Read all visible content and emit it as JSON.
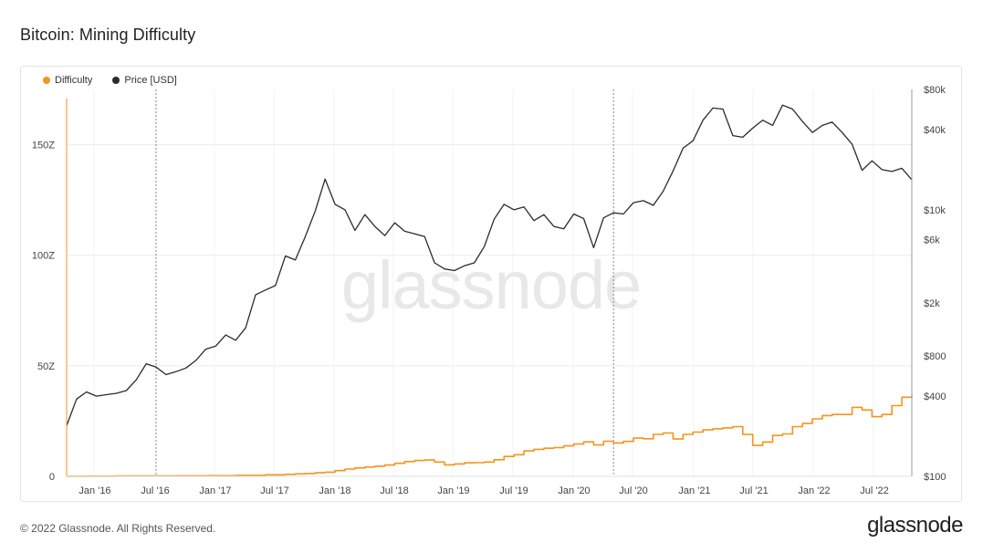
{
  "title": "Bitcoin: Mining Difficulty",
  "footer": "© 2022 Glassnode. All Rights Reserved.",
  "brand": "glassnode",
  "watermark": "glassnode",
  "colors": {
    "difficulty": "#f7931a",
    "price": "#2b2b2b",
    "grid": "#ececec"
  },
  "chart_data": {
    "type": "line",
    "xlabels": [
      "Jan '16",
      "Jul '16",
      "Jan '17",
      "Jul '17",
      "Jan '18",
      "Jul '18",
      "Jan '19",
      "Jul '19",
      "Jan '20",
      "Jul '20",
      "Jan '21",
      "Jul '21",
      "Jan '22",
      "Jul '22"
    ],
    "x_range": [
      "2015-10",
      "2022-11"
    ],
    "left_axis": {
      "ticks": [
        0,
        50,
        100,
        150
      ],
      "tick_labels": [
        "0",
        "50Z",
        "100Z",
        "150Z"
      ],
      "range": [
        0,
        175
      ]
    },
    "right_axis": {
      "scale": "log",
      "ticks": [
        100,
        400,
        800,
        2000,
        6000,
        10000,
        40000,
        80000
      ],
      "tick_labels": [
        "$100",
        "$400",
        "$800",
        "$2k",
        "$6k",
        "$10k",
        "$40k",
        "$80k"
      ],
      "range": [
        100,
        80000
      ]
    },
    "vertical_markers": [
      "2016-07",
      "2020-05"
    ],
    "legend": [
      {
        "name": "Difficulty"
      },
      {
        "name": "Price [USD]"
      }
    ],
    "series": [
      {
        "name": "Difficulty",
        "axis": "left",
        "step": true,
        "points": [
          [
            "2015-10",
            0.06
          ],
          [
            "2015-12",
            0.1
          ],
          [
            "2016-03",
            0.16
          ],
          [
            "2016-06",
            0.2
          ],
          [
            "2016-09",
            0.23
          ],
          [
            "2016-12",
            0.3
          ],
          [
            "2017-03",
            0.45
          ],
          [
            "2017-06",
            0.7
          ],
          [
            "2017-08",
            0.9
          ],
          [
            "2017-09",
            1.1
          ],
          [
            "2017-10",
            1.3
          ],
          [
            "2017-11",
            1.6
          ],
          [
            "2017-12",
            1.9
          ],
          [
            "2018-01",
            2.6
          ],
          [
            "2018-02",
            3.3
          ],
          [
            "2018-03",
            3.8
          ],
          [
            "2018-04",
            4.2
          ],
          [
            "2018-05",
            4.6
          ],
          [
            "2018-06",
            5.1
          ],
          [
            "2018-07",
            5.9
          ],
          [
            "2018-08",
            6.7
          ],
          [
            "2018-09",
            7.2
          ],
          [
            "2018-10",
            7.4
          ],
          [
            "2018-11",
            6.5
          ],
          [
            "2018-12",
            5.2
          ],
          [
            "2019-01",
            5.6
          ],
          [
            "2019-02",
            6.1
          ],
          [
            "2019-03",
            6.2
          ],
          [
            "2019-04",
            6.5
          ],
          [
            "2019-05",
            7.5
          ],
          [
            "2019-06",
            9.0
          ],
          [
            "2019-07",
            9.8
          ],
          [
            "2019-08",
            11.5
          ],
          [
            "2019-09",
            12.2
          ],
          [
            "2019-10",
            12.7
          ],
          [
            "2019-11",
            13.0
          ],
          [
            "2019-12",
            13.8
          ],
          [
            "2020-01",
            14.6
          ],
          [
            "2020-02",
            15.6
          ],
          [
            "2020-03",
            14.2
          ],
          [
            "2020-04",
            15.9
          ],
          [
            "2020-05",
            15.1
          ],
          [
            "2020-06",
            15.8
          ],
          [
            "2020-07",
            17.3
          ],
          [
            "2020-08",
            17.0
          ],
          [
            "2020-09",
            19.0
          ],
          [
            "2020-10",
            19.6
          ],
          [
            "2020-11",
            16.9
          ],
          [
            "2020-12",
            19.0
          ],
          [
            "2021-01",
            20.0
          ],
          [
            "2021-02",
            21.0
          ],
          [
            "2021-03",
            21.5
          ],
          [
            "2021-04",
            21.9
          ],
          [
            "2021-05",
            22.5
          ],
          [
            "2021-06",
            19.0
          ],
          [
            "2021-07",
            14.0
          ],
          [
            "2021-08",
            15.5
          ],
          [
            "2021-09",
            18.5
          ],
          [
            "2021-10",
            19.2
          ],
          [
            "2021-11",
            22.5
          ],
          [
            "2021-12",
            24.0
          ],
          [
            "2022-01",
            26.0
          ],
          [
            "2022-02",
            27.5
          ],
          [
            "2022-03",
            28.0
          ],
          [
            "2022-04",
            28.0
          ],
          [
            "2022-05",
            31.2
          ],
          [
            "2022-06",
            30.0
          ],
          [
            "2022-07",
            27.0
          ],
          [
            "2022-08",
            28.0
          ],
          [
            "2022-09",
            32.0
          ],
          [
            "2022-10",
            35.8
          ],
          [
            "2022-11",
            36.5
          ]
        ]
      },
      {
        "name": "Price [USD]",
        "axis": "right",
        "points": [
          [
            "2015-10",
            240
          ],
          [
            "2015-11",
            380
          ],
          [
            "2015-12",
            430
          ],
          [
            "2016-01",
            400
          ],
          [
            "2016-02",
            410
          ],
          [
            "2016-03",
            420
          ],
          [
            "2016-04",
            440
          ],
          [
            "2016-05",
            530
          ],
          [
            "2016-06",
            700
          ],
          [
            "2016-07",
            660
          ],
          [
            "2016-08",
            580
          ],
          [
            "2016-09",
            610
          ],
          [
            "2016-10",
            650
          ],
          [
            "2016-11",
            740
          ],
          [
            "2016-12",
            900
          ],
          [
            "2017-01",
            950
          ],
          [
            "2017-02",
            1150
          ],
          [
            "2017-03",
            1050
          ],
          [
            "2017-04",
            1300
          ],
          [
            "2017-05",
            2300
          ],
          [
            "2017-06",
            2500
          ],
          [
            "2017-07",
            2700
          ],
          [
            "2017-08",
            4500
          ],
          [
            "2017-09",
            4200
          ],
          [
            "2017-10",
            6300
          ],
          [
            "2017-11",
            9800
          ],
          [
            "2017-12",
            17000
          ],
          [
            "2018-01",
            11000
          ],
          [
            "2018-02",
            10000
          ],
          [
            "2018-03",
            7000
          ],
          [
            "2018-04",
            9200
          ],
          [
            "2018-05",
            7500
          ],
          [
            "2018-06",
            6400
          ],
          [
            "2018-07",
            8000
          ],
          [
            "2018-08",
            6900
          ],
          [
            "2018-09",
            6600
          ],
          [
            "2018-10",
            6300
          ],
          [
            "2018-11",
            4000
          ],
          [
            "2018-12",
            3600
          ],
          [
            "2019-01",
            3500
          ],
          [
            "2019-02",
            3800
          ],
          [
            "2019-03",
            4000
          ],
          [
            "2019-04",
            5300
          ],
          [
            "2019-05",
            8500
          ],
          [
            "2019-06",
            11000
          ],
          [
            "2019-07",
            10000
          ],
          [
            "2019-08",
            10500
          ],
          [
            "2019-09",
            8300
          ],
          [
            "2019-10",
            9200
          ],
          [
            "2019-11",
            7500
          ],
          [
            "2019-12",
            7200
          ],
          [
            "2020-01",
            9300
          ],
          [
            "2020-02",
            8600
          ],
          [
            "2020-03",
            5200
          ],
          [
            "2020-04",
            8700
          ],
          [
            "2020-05",
            9500
          ],
          [
            "2020-06",
            9300
          ],
          [
            "2020-07",
            11300
          ],
          [
            "2020-08",
            11700
          ],
          [
            "2020-09",
            10800
          ],
          [
            "2020-10",
            13800
          ],
          [
            "2020-11",
            19600
          ],
          [
            "2020-12",
            29000
          ],
          [
            "2021-01",
            33000
          ],
          [
            "2021-02",
            47000
          ],
          [
            "2021-03",
            58000
          ],
          [
            "2021-04",
            57000
          ],
          [
            "2021-05",
            36000
          ],
          [
            "2021-06",
            35000
          ],
          [
            "2021-07",
            41000
          ],
          [
            "2021-08",
            47000
          ],
          [
            "2021-09",
            43000
          ],
          [
            "2021-10",
            61000
          ],
          [
            "2021-11",
            57000
          ],
          [
            "2021-12",
            46000
          ],
          [
            "2022-01",
            38000
          ],
          [
            "2022-02",
            43000
          ],
          [
            "2022-03",
            45500
          ],
          [
            "2022-04",
            38000
          ],
          [
            "2022-05",
            31000
          ],
          [
            "2022-06",
            19800
          ],
          [
            "2022-07",
            23300
          ],
          [
            "2022-08",
            20000
          ],
          [
            "2022-09",
            19400
          ],
          [
            "2022-10",
            20500
          ],
          [
            "2022-11",
            16800
          ]
        ]
      }
    ]
  }
}
